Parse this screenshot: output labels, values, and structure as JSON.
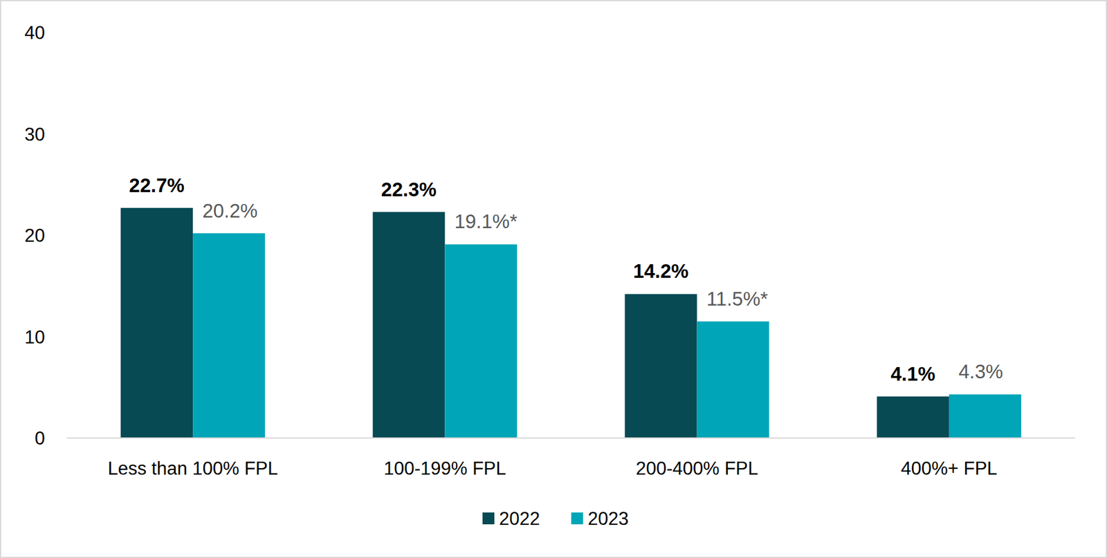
{
  "chart_data": {
    "type": "bar",
    "categories": [
      "Less than 100% FPL",
      "100-199% FPL",
      "200-400% FPL",
      "400%+ FPL"
    ],
    "series": [
      {
        "name": "2022",
        "color": "#074a54",
        "values": [
          22.7,
          22.3,
          14.2,
          4.1
        ],
        "value_labels": [
          "22.7%",
          "22.3%",
          "14.2%",
          "4.1%"
        ]
      },
      {
        "name": "2023",
        "color": "#00a6b8",
        "values": [
          20.2,
          19.1,
          11.5,
          4.3
        ],
        "value_labels": [
          "20.2%",
          "19.1%*",
          "11.5%*",
          "4.3%"
        ]
      }
    ],
    "ylim": [
      0,
      40
    ],
    "yticks": [
      0,
      10,
      20,
      30,
      40
    ],
    "grid": false,
    "legend": "bottom",
    "data_labels": true
  }
}
